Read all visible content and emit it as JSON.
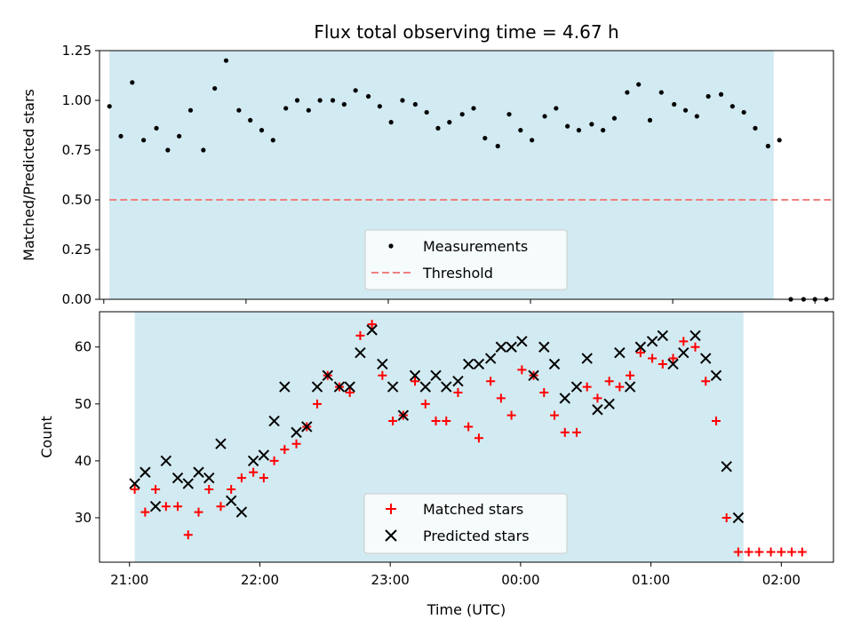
{
  "colors": {
    "band": "#add8e6",
    "measurement": "#000000",
    "threshold": "#f08080",
    "matched": "#ff0000",
    "predicted": "#000000"
  },
  "chart_data": [
    {
      "type": "scatter",
      "title": "Flux total observing time = 4.67 h",
      "xlabel": "",
      "ylabel": "Matched/Predicted stars",
      "xlim": [
        -0.03,
        5.13
      ],
      "ylim": [
        0,
        1.25
      ],
      "yticks": [
        0.0,
        0.25,
        0.5,
        0.75,
        1.0,
        1.25
      ],
      "ytick_labels": [
        "0.00",
        "0.25",
        "0.50",
        "0.75",
        "1.00",
        "1.25"
      ],
      "xticks": [
        0,
        1,
        2,
        3,
        4,
        5
      ],
      "x_unit": "hours since 21:00 UTC",
      "shaded_span": [
        0.04,
        4.71
      ],
      "legend": {
        "location": "lower-center",
        "entries": [
          "Measurements",
          "Threshold"
        ]
      },
      "series": [
        {
          "name": "Measurements",
          "marker": "dot",
          "x": [
            0.04,
            0.12,
            0.2,
            0.28,
            0.37,
            0.45,
            0.53,
            0.61,
            0.7,
            0.78,
            0.86,
            0.95,
            1.03,
            1.11,
            1.19,
            1.28,
            1.36,
            1.44,
            1.52,
            1.61,
            1.69,
            1.77,
            1.86,
            1.94,
            2.02,
            2.1,
            2.19,
            2.27,
            2.35,
            2.43,
            2.52,
            2.6,
            2.68,
            2.77,
            2.85,
            2.93,
            3.01,
            3.1,
            3.18,
            3.26,
            3.34,
            3.43,
            3.51,
            3.59,
            3.68,
            3.76,
            3.84,
            3.92,
            4.01,
            4.09,
            4.17,
            4.25,
            4.34,
            4.42,
            4.5,
            4.58,
            4.67,
            4.75,
            4.83,
            4.92,
            5.0,
            5.08
          ],
          "y": [
            0.97,
            0.82,
            1.09,
            0.8,
            0.86,
            0.75,
            0.82,
            0.95,
            0.75,
            1.06,
            1.2,
            0.95,
            0.9,
            0.85,
            0.8,
            0.96,
            1.0,
            0.95,
            1.0,
            1.0,
            0.98,
            1.05,
            1.02,
            0.97,
            0.89,
            1.0,
            0.98,
            0.94,
            0.86,
            0.89,
            0.93,
            0.96,
            0.81,
            0.77,
            0.93,
            0.85,
            0.8,
            0.92,
            0.96,
            0.87,
            0.85,
            0.88,
            0.85,
            0.91,
            1.04,
            1.08,
            0.9,
            1.04,
            0.98,
            0.95,
            0.92,
            1.02,
            1.03,
            0.97,
            0.94,
            0.86,
            0.77,
            0.8,
            0.0,
            0.0,
            0.0,
            0.0
          ]
        },
        {
          "name": "Threshold",
          "style": "dashed",
          "x": [
            0.04,
            5.13
          ],
          "y": [
            0.5,
            0.5
          ]
        }
      ]
    },
    {
      "type": "scatter",
      "title": "",
      "xlabel": "Time (UTC)",
      "ylabel": "Count",
      "xlim": [
        -0.23,
        5.4
      ],
      "ylim": [
        22.2,
        66.2
      ],
      "yticks": [
        30,
        40,
        50,
        60
      ],
      "xticks": [
        0,
        1,
        2,
        3,
        4,
        5
      ],
      "xtick_labels": [
        "21:00",
        "22:00",
        "23:00",
        "00:00",
        "01:00",
        "02:00"
      ],
      "x_unit": "hours since 21:00 UTC",
      "shaded_span": [
        0.04,
        4.71
      ],
      "legend": {
        "location": "lower-center",
        "entries": [
          "Matched stars",
          "Predicted stars"
        ]
      },
      "series": [
        {
          "name": "Matched stars",
          "marker": "plus",
          "x": [
            0.04,
            0.12,
            0.2,
            0.28,
            0.37,
            0.45,
            0.53,
            0.61,
            0.7,
            0.78,
            0.86,
            0.95,
            1.03,
            1.11,
            1.19,
            1.28,
            1.36,
            1.44,
            1.52,
            1.61,
            1.69,
            1.77,
            1.86,
            1.94,
            2.02,
            2.1,
            2.19,
            2.27,
            2.35,
            2.43,
            2.52,
            2.6,
            2.68,
            2.77,
            2.85,
            2.93,
            3.01,
            3.1,
            3.18,
            3.26,
            3.34,
            3.43,
            3.51,
            3.59,
            3.68,
            3.76,
            3.84,
            3.92,
            4.01,
            4.09,
            4.17,
            4.25,
            4.34,
            4.42,
            4.5,
            4.58,
            4.67,
            4.75,
            4.83,
            4.92,
            5.0,
            5.08,
            5.16
          ],
          "y": [
            35,
            31,
            35,
            32,
            32,
            27,
            31,
            35,
            32,
            35,
            37,
            38,
            37,
            40,
            42,
            43,
            46,
            50,
            55,
            53,
            52,
            62,
            64,
            55,
            47,
            48,
            54,
            50,
            47,
            47,
            52,
            46,
            44,
            54,
            51,
            48,
            56,
            55,
            52,
            48,
            45,
            45,
            53,
            51,
            54,
            53,
            55,
            59,
            58,
            57,
            58,
            61,
            60,
            54,
            47,
            30,
            24,
            24,
            24,
            24,
            24,
            24,
            24
          ]
        },
        {
          "name": "Predicted stars",
          "marker": "x",
          "x": [
            0.04,
            0.12,
            0.2,
            0.28,
            0.37,
            0.45,
            0.53,
            0.61,
            0.7,
            0.78,
            0.86,
            0.95,
            1.03,
            1.11,
            1.19,
            1.28,
            1.36,
            1.44,
            1.52,
            1.61,
            1.69,
            1.77,
            1.86,
            1.94,
            2.02,
            2.1,
            2.19,
            2.27,
            2.35,
            2.43,
            2.52,
            2.6,
            2.68,
            2.77,
            2.85,
            2.93,
            3.01,
            3.1,
            3.18,
            3.26,
            3.34,
            3.43,
            3.51,
            3.59,
            3.68,
            3.76,
            3.84,
            3.92,
            4.01,
            4.09,
            4.17,
            4.25,
            4.34,
            4.42,
            4.5,
            4.58,
            4.67
          ],
          "y": [
            36,
            38,
            32,
            40,
            37,
            36,
            38,
            37,
            43,
            33,
            31,
            40,
            41,
            47,
            53,
            45,
            46,
            53,
            55,
            53,
            53,
            59,
            63,
            57,
            53,
            48,
            55,
            53,
            55,
            53,
            54,
            57,
            57,
            58,
            60,
            60,
            61,
            55,
            60,
            57,
            51,
            53,
            58,
            49,
            50,
            59,
            53,
            60,
            61,
            62,
            57,
            59,
            62,
            58,
            55,
            39,
            30
          ]
        }
      ]
    }
  ]
}
